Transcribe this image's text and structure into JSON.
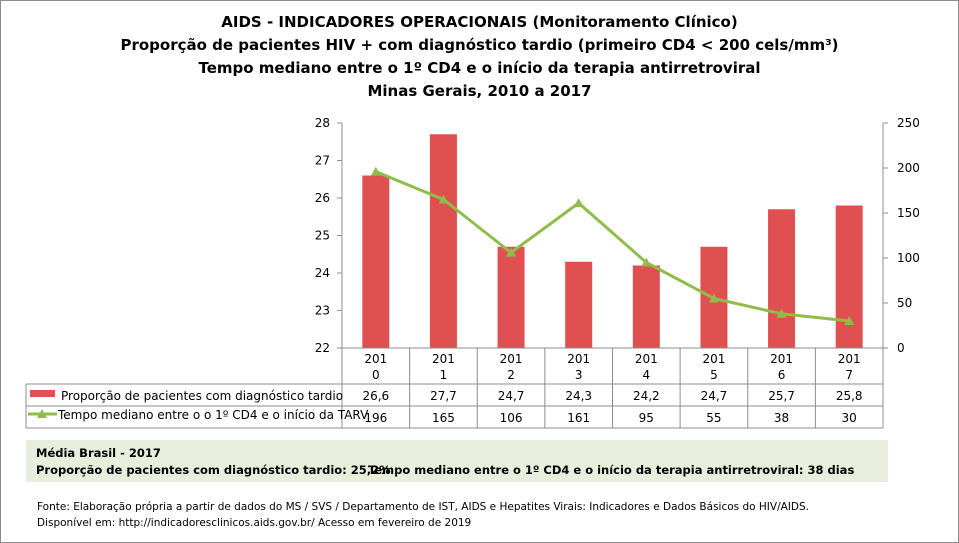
{
  "titles": [
    "AIDS - INDICADORES OPERACIONAIS (Monitoramento Clínico)",
    "Proporção de pacientes HIV + com diagnóstico tardio (primeiro CD4 < 200 cels/mm³)",
    "Tempo mediano entre o 1º CD4 e o início da terapia antirretroviral",
    "Minas Gerais, 2010 a 2017"
  ],
  "chart_data": {
    "type": "bar+line",
    "categories": [
      "201\n0",
      "201\n1",
      "201\n2",
      "201\n3",
      "201\n4",
      "201\n5",
      "201\n6",
      "201\n7"
    ],
    "category_lines": [
      [
        "201",
        "0"
      ],
      [
        "201",
        "1"
      ],
      [
        "201",
        "2"
      ],
      [
        "201",
        "3"
      ],
      [
        "201",
        "4"
      ],
      [
        "201",
        "5"
      ],
      [
        "201",
        "6"
      ],
      [
        "201",
        "7"
      ]
    ],
    "series": [
      {
        "name": "Proporção de pacientes com diagnóstico tardio",
        "type": "bar",
        "axis": "left",
        "color": "#e05050",
        "values": [
          26.6,
          27.7,
          24.7,
          24.3,
          24.2,
          24.7,
          25.7,
          25.8
        ],
        "labels": [
          "26,6",
          "27,7",
          "24,7",
          "24,3",
          "24,2",
          "24,7",
          "25,7",
          "25,8"
        ]
      },
      {
        "name": "Tempo mediano entre o o 1º CD4 e o início da TARV",
        "type": "line",
        "axis": "right",
        "color": "#8fbc4a",
        "marker": "triangle",
        "values": [
          196,
          165,
          106,
          161,
          95,
          55,
          38,
          30
        ],
        "labels": [
          "196",
          "165",
          "106",
          "161",
          "95",
          "55",
          "38",
          "30"
        ]
      }
    ],
    "y_left": {
      "min": 22,
      "max": 28,
      "ticks": [
        "22",
        "23",
        "24",
        "25",
        "26",
        "27",
        "28"
      ]
    },
    "y_right": {
      "min": 0,
      "max": 250,
      "ticks": [
        "0",
        "50",
        "100",
        "150",
        "200",
        "250"
      ]
    },
    "grid": "vertical category lines",
    "legend": "data table below chart"
  },
  "media": {
    "heading": "Média Brasil  - 2017",
    "proporcao": "Proporção de pacientes com diagnóstico  tardio: 25,2%",
    "tempo": "Tempo mediano entre o 1º CD4 e o início da terapia antirretroviral: 38 dias"
  },
  "fonte": [
    "Fonte: Elaboração própria a partir de dados do  MS / SVS / Departamento de IST, AIDS e Hepatites Virais: Indicadores e Dados Básicos do HIV/AIDS.",
    "Disponível em: http://indicadoresclinicos.aids.gov.br/ Acesso em fevereiro de 2019"
  ]
}
